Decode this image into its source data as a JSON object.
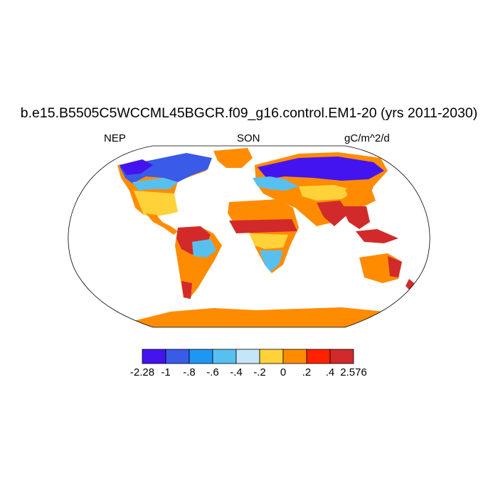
{
  "title": "b.e15.B5505C5WCCML45BGCR.f09_g16.control.EM1-20 (yrs 2011-2030)",
  "left_label": "NEP",
  "center_label": "SON",
  "right_label": "gC/m^2/d",
  "colorbar": {
    "colors": [
      "#4414f0",
      "#3a5ae8",
      "#1e96f4",
      "#58c0f0",
      "#c4e6f8",
      "#ffd23a",
      "#ff8c00",
      "#ff2100",
      "#d22a2a"
    ],
    "labels": [
      "-2.28",
      "-1",
      "-.8",
      "-.6",
      "-.4",
      "-.2",
      "0",
      ".2",
      ".4",
      "2.576"
    ]
  },
  "map_colors": {
    "ocean": "#ffffff",
    "deep_blue": "#4414f0",
    "blue": "#3a5ae8",
    "mid_blue": "#1e96f4",
    "light_blue": "#58c0f0",
    "pale_blue": "#c4e6f8",
    "yellow": "#ffd23a",
    "orange": "#ff8c00",
    "red": "#ff2100",
    "dark_red": "#d22a2a"
  }
}
